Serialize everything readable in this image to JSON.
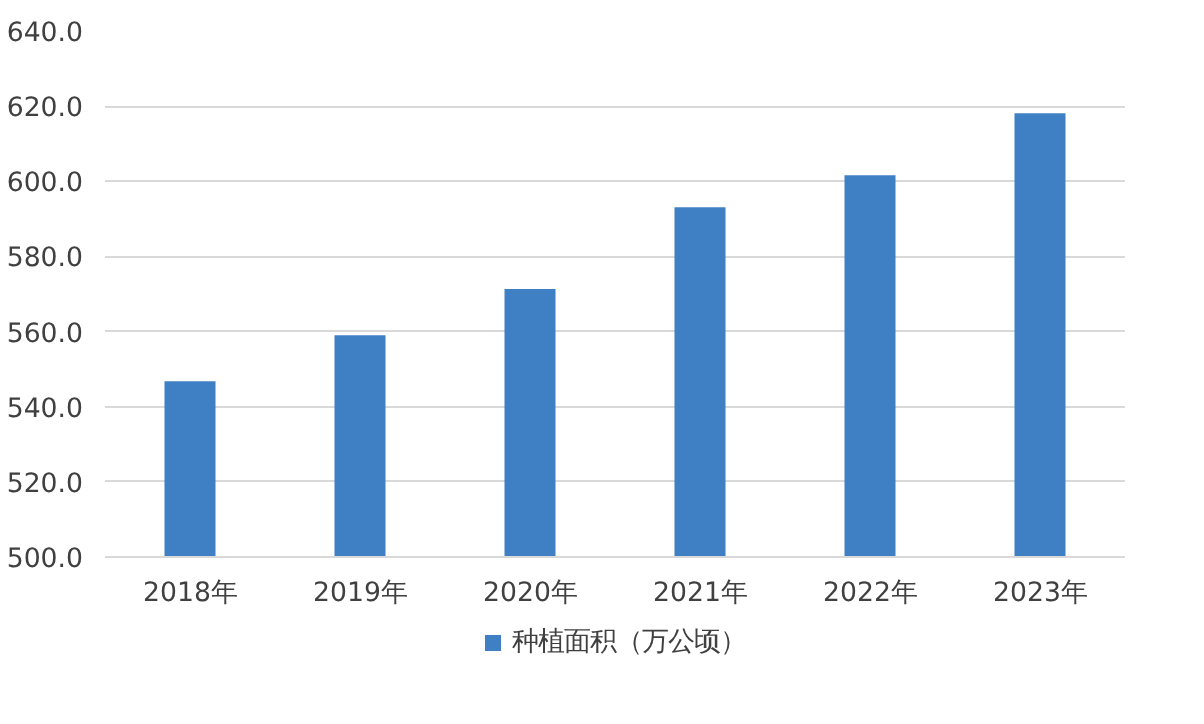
{
  "chart_data": {
    "type": "bar",
    "categories": [
      "2018年",
      "2019年",
      "2020年",
      "2021年",
      "2022年",
      "2023年"
    ],
    "series": [
      {
        "name": "种植面积（万公顷）",
        "color": "#3f7fc4",
        "values": [
          546.8,
          559.0,
          571.3,
          593.1,
          601.6,
          618.1
        ]
      }
    ],
    "ylim": [
      500,
      640
    ],
    "yticks": [
      {
        "value": 500,
        "label": "500.0"
      },
      {
        "value": 520,
        "label": "520.0"
      },
      {
        "value": 540,
        "label": "540.0"
      },
      {
        "value": 560,
        "label": "560.0"
      },
      {
        "value": 580,
        "label": "580.0"
      },
      {
        "value": 600,
        "label": "600.0"
      },
      {
        "value": 620,
        "label": "620.0"
      },
      {
        "value": 640,
        "label": "640.0"
      }
    ],
    "grid": "y",
    "legend": "bottom"
  }
}
